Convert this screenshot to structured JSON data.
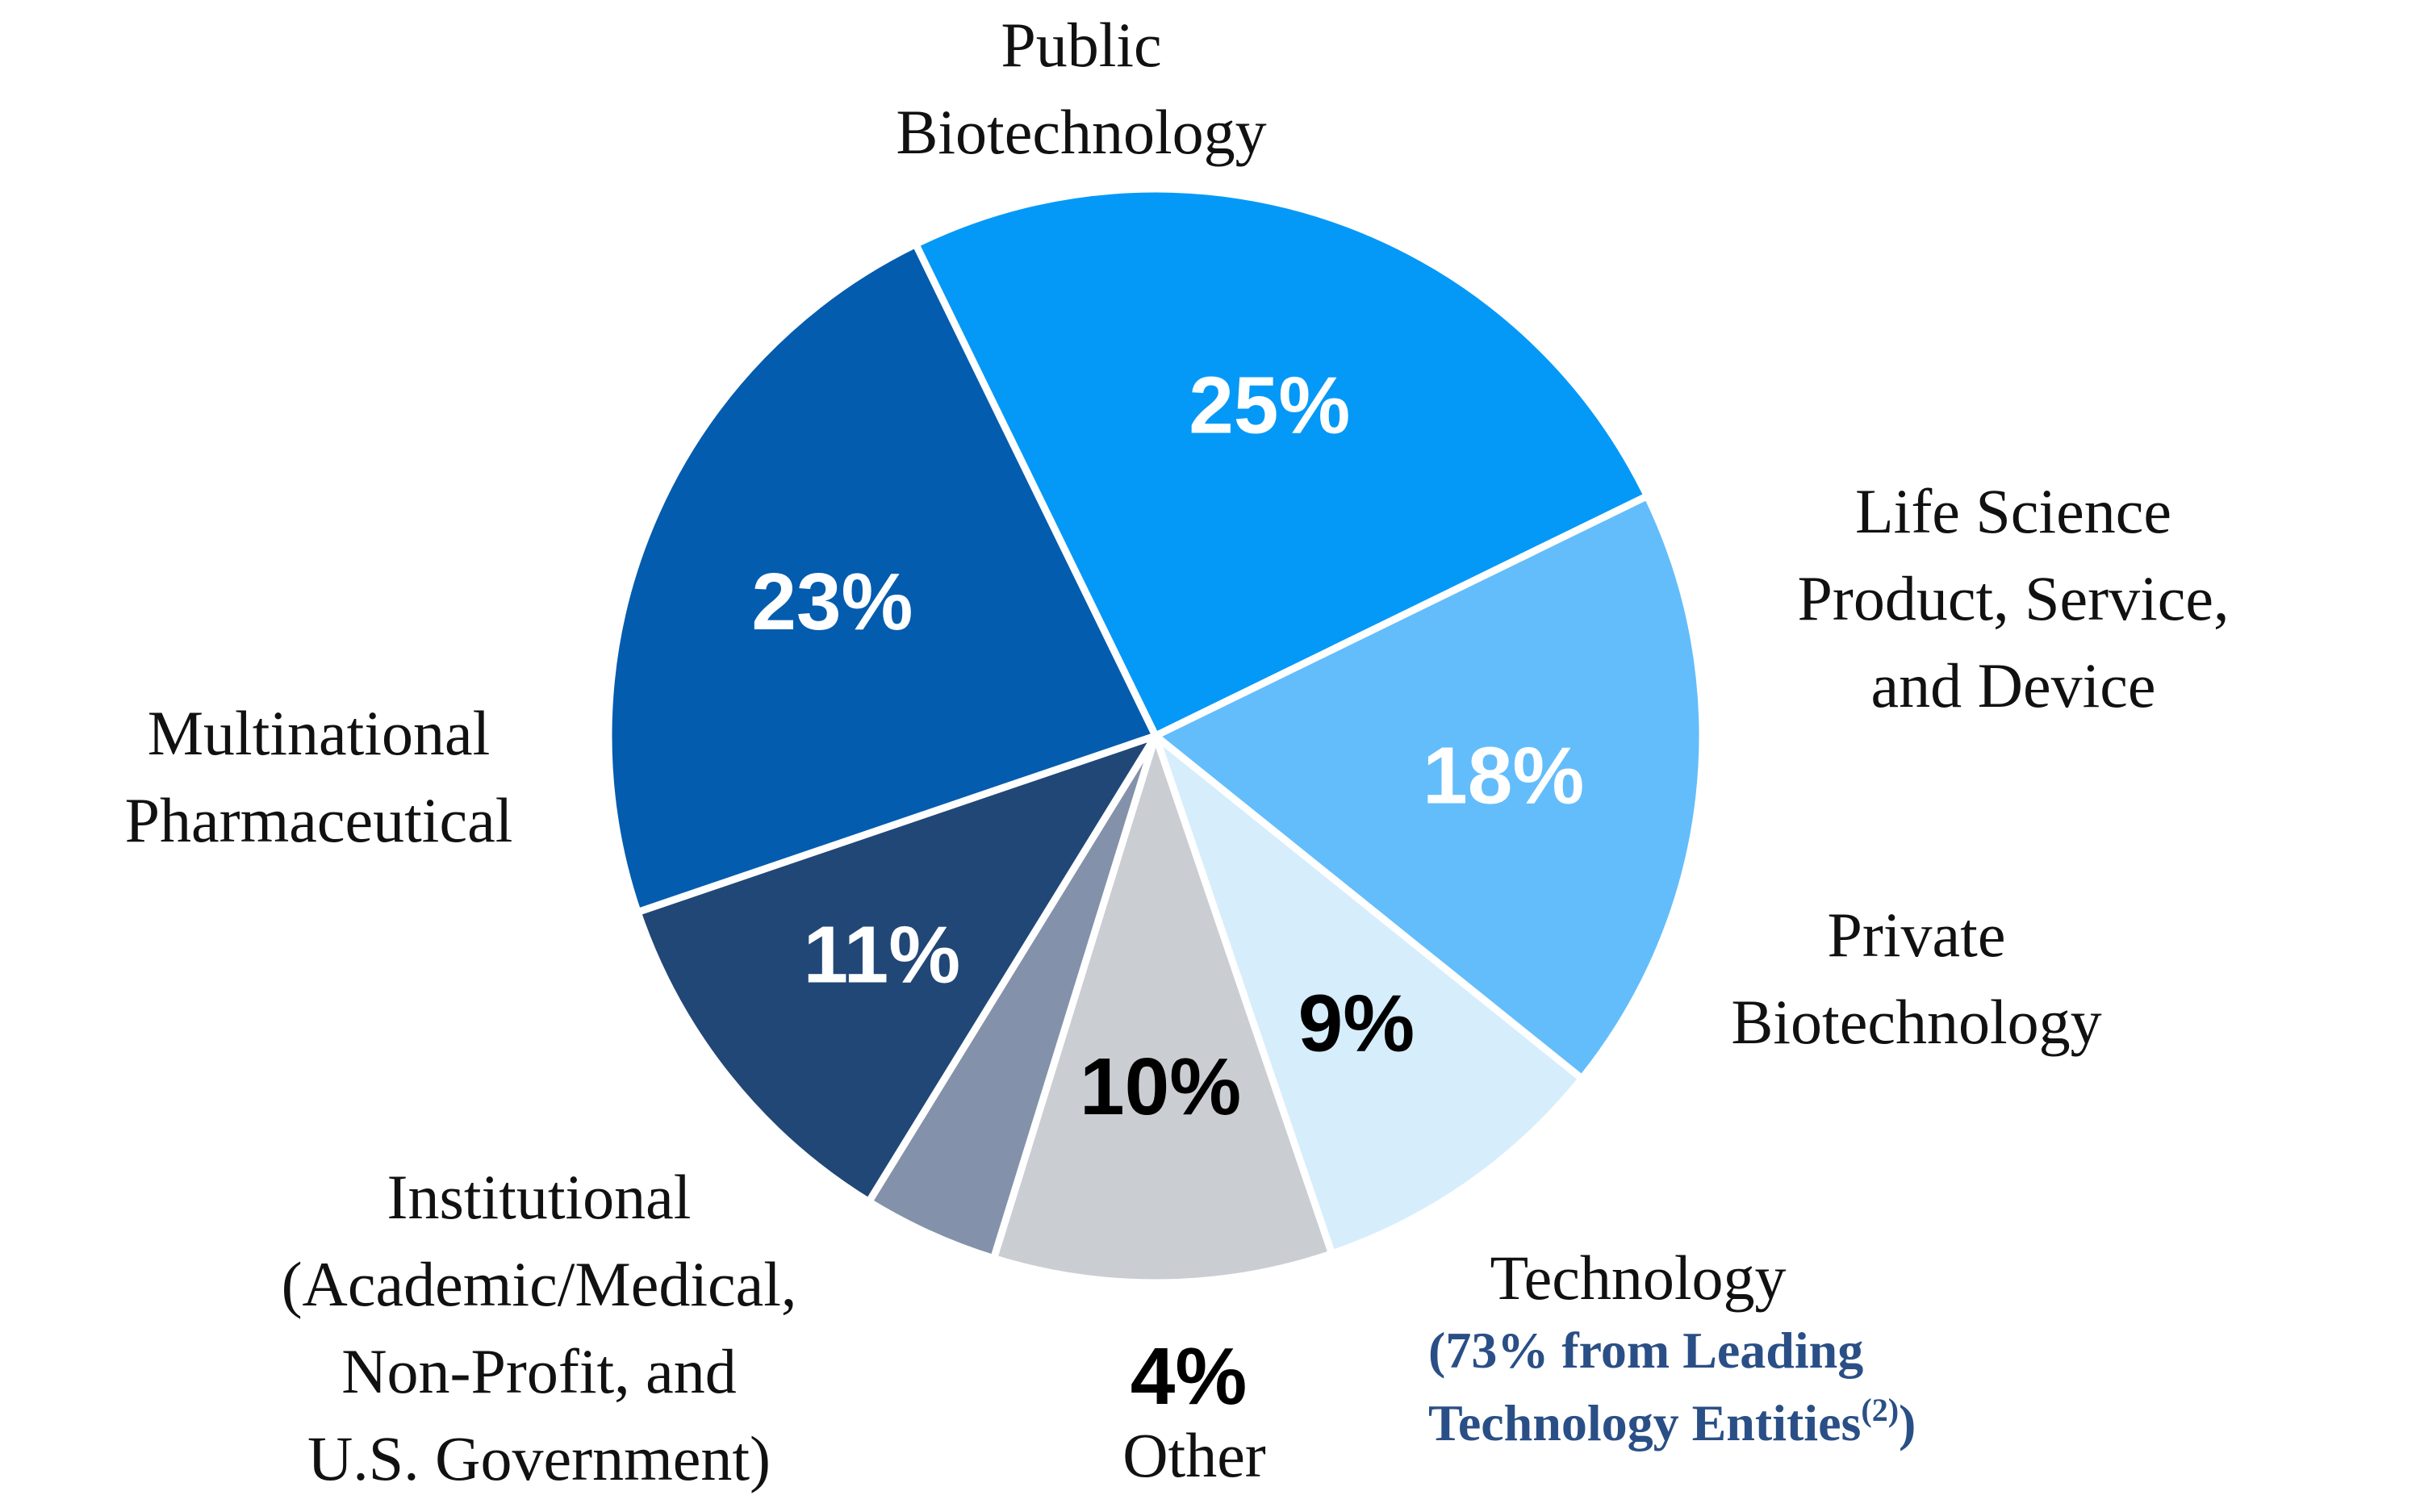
{
  "chart_data": {
    "type": "pie",
    "slices": [
      {
        "name_lines": [
          "Public",
          "Biotechnology"
        ],
        "value": 25,
        "label": "25%",
        "color": "#0599f7",
        "label_color": "#ffffff"
      },
      {
        "name_lines": [
          "Life Science",
          "Product, Service,",
          "and Device"
        ],
        "value": 18,
        "label": "18%",
        "color": "#63bdfb",
        "label_color": "#ffffff"
      },
      {
        "name_lines": [
          "Private",
          "Biotechnology"
        ],
        "value": 9,
        "label": "9%",
        "color": "#d6edfc",
        "label_color": "#000000"
      },
      {
        "name_lines": [
          "Technology"
        ],
        "value": 10,
        "label": "10%",
        "color": "#cacdd2",
        "label_color": "#000000"
      },
      {
        "name_lines": [
          "Other"
        ],
        "value": 4,
        "label": "4%",
        "color": "#8392aa",
        "label_color": "#000000"
      },
      {
        "name_lines": [
          "Institutional",
          "(Academic/Medical,",
          "Non-Profit, and",
          "U.S. Government)"
        ],
        "value": 11,
        "label": "11%",
        "color": "#214777",
        "label_color": "#ffffff"
      },
      {
        "name_lines": [
          "Multinational",
          "Pharmaceutical"
        ],
        "value": 23,
        "label": "23%",
        "color": "#035cae",
        "label_color": "#ffffff"
      }
    ],
    "annotation": {
      "line1": "(73% from Leading",
      "line2_main": "Technology Entities",
      "line2_sup": "(2)",
      "line2_end": ")",
      "color": "#2a4f86"
    }
  }
}
